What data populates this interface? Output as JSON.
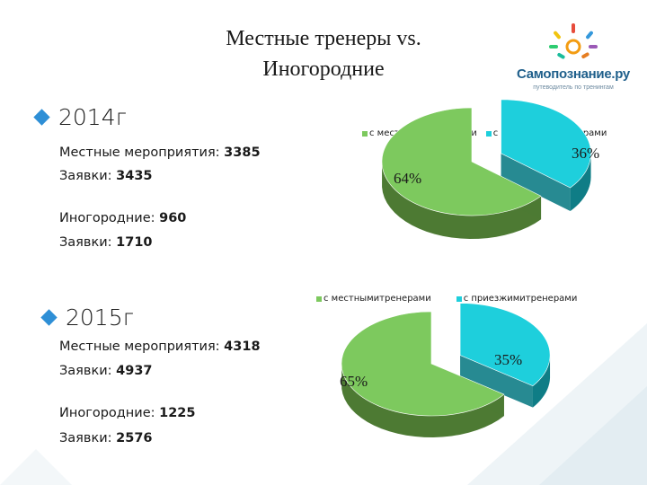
{
  "title": {
    "line1": "Местные тренеры  vs.",
    "line2": "Иногородние"
  },
  "logo": {
    "name": "Самопознание.ру",
    "tagline": "путеводитель по тренингам"
  },
  "colors": {
    "local": "#7dc95e",
    "visiting": "#1ecfdc",
    "bullet": "#2e8fd6"
  },
  "years": [
    {
      "label": "2014г",
      "local_events_label": "Местные мероприятия",
      "local_events": "3385",
      "local_apps_label": "Заявки",
      "local_apps": "3435",
      "visiting_events_label": "Иногородние",
      "visiting_events": "960",
      "visiting_apps_label": "Заявки",
      "visiting_apps": "1710"
    },
    {
      "label": "2015г",
      "local_events_label": "Местные мероприятия",
      "local_events": "4318",
      "local_apps_label": "Заявки",
      "local_apps": "4937",
      "visiting_events_label": "Иногородние",
      "visiting_events": "1225",
      "visiting_apps_label": "Заявки",
      "visiting_apps": "2576"
    }
  ],
  "chart_data": [
    {
      "type": "pie",
      "categories": [
        "с местнымитренерами",
        "с приезжимитренерами"
      ],
      "values": [
        64,
        36
      ],
      "data_labels": [
        "64%",
        "36%"
      ],
      "exploded": true,
      "style": "3d",
      "legend_position": "top"
    },
    {
      "type": "pie",
      "categories": [
        "с местнымитренерами",
        "с приезжимитренерами"
      ],
      "values": [
        65,
        35
      ],
      "data_labels": [
        "65%",
        "35%"
      ],
      "exploded": true,
      "style": "3d",
      "legend_position": "top"
    }
  ]
}
